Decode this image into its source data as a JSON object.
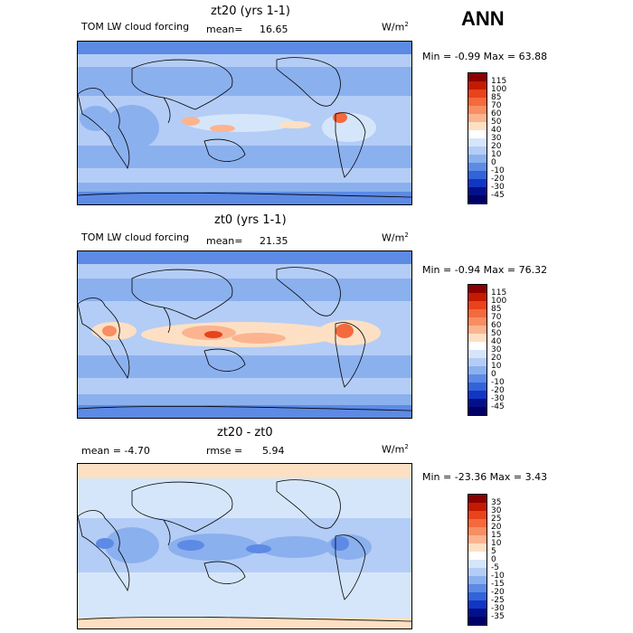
{
  "season": "ANN",
  "unit_label": "W/m",
  "unit_exp": "2",
  "panels": [
    {
      "title": "zt20 (yrs 1-1)",
      "left_label": "TOM LW cloud forcing",
      "stat_label": "mean=",
      "stat_value": "16.65",
      "minmax": "Min =  -0.99 Max =  63.88",
      "levels": [
        "115",
        "100",
        "85",
        "70",
        "60",
        "50",
        "40",
        "30",
        "20",
        "10",
        "0",
        "-10",
        "-20",
        "-30",
        "-45"
      ],
      "colors": [
        "#8b0000",
        "#c41a00",
        "#e8431b",
        "#f46a3d",
        "#f88e63",
        "#fbb48f",
        "#fde0c4",
        "#ffffff",
        "#d6e6fa",
        "#b4cdf6",
        "#8bb0ee",
        "#5c8ae5",
        "#3263d8",
        "#1236c4",
        "#03108c",
        "#000066"
      ]
    },
    {
      "title": "zt0 (yrs 1-1)",
      "left_label": "TOM LW cloud forcing",
      "stat_label": "mean=",
      "stat_value": "21.35",
      "minmax": "Min =  -0.94 Max =  76.32",
      "levels": [
        "115",
        "100",
        "85",
        "70",
        "60",
        "50",
        "40",
        "30",
        "20",
        "10",
        "0",
        "-10",
        "-20",
        "-30",
        "-45"
      ],
      "colors": [
        "#8b0000",
        "#c41a00",
        "#e8431b",
        "#f46a3d",
        "#f88e63",
        "#fbb48f",
        "#fde0c4",
        "#ffffff",
        "#d6e6fa",
        "#b4cdf6",
        "#8bb0ee",
        "#5c8ae5",
        "#3263d8",
        "#1236c4",
        "#03108c",
        "#000066"
      ]
    },
    {
      "title": "zt20 - zt0",
      "left_label": "mean =   -4.70",
      "stat_label": "rmse =",
      "stat_value": "5.94",
      "minmax": "Min = -23.36 Max =   3.43",
      "levels": [
        "35",
        "30",
        "25",
        "20",
        "15",
        "10",
        "5",
        "0",
        "-5",
        "-10",
        "-15",
        "-20",
        "-25",
        "-30",
        "-35"
      ],
      "colors": [
        "#8b0000",
        "#c41a00",
        "#e8431b",
        "#f46a3d",
        "#f88e63",
        "#fbb48f",
        "#fde0c4",
        "#ffffff",
        "#d6e6fa",
        "#b4cdf6",
        "#8bb0ee",
        "#5c8ae5",
        "#3263d8",
        "#1236c4",
        "#03108c",
        "#000066"
      ]
    }
  ]
}
